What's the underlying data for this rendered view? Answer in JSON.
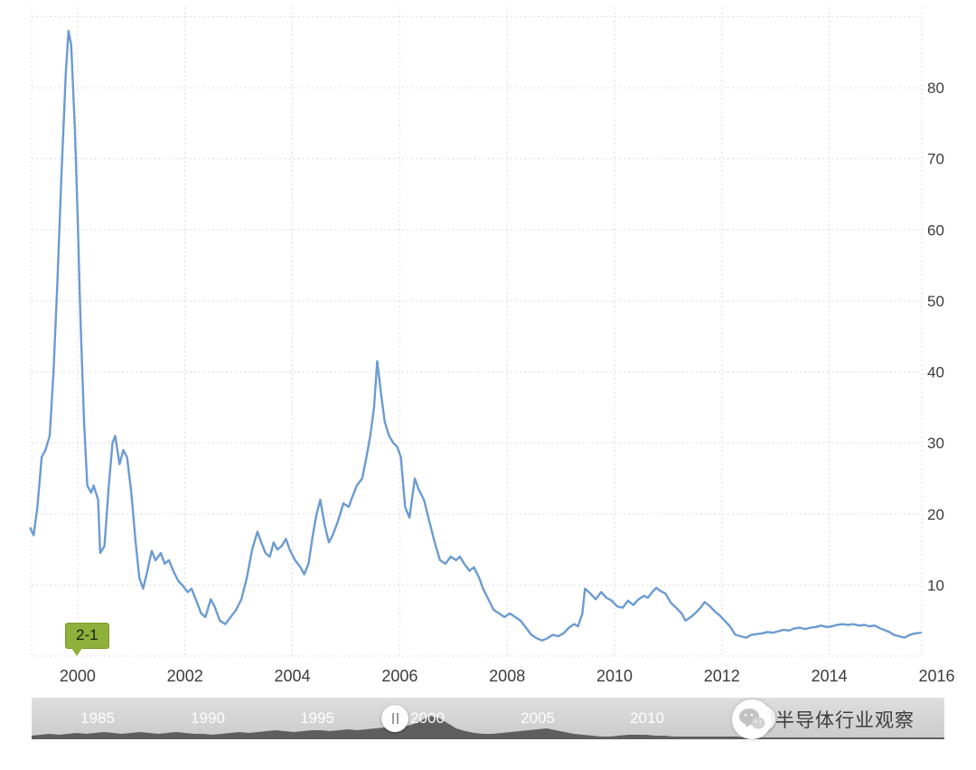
{
  "chart_data": {
    "type": "line",
    "title": "",
    "xlabel": "",
    "ylabel": "",
    "x_range": [
      1999.143,
      2015.723
    ],
    "y_range": [
      0,
      90
    ],
    "x_ticks": [
      "2000",
      "2002",
      "2004",
      "2006",
      "2008",
      "2010",
      "2012",
      "2014",
      "2016"
    ],
    "y_ticks": [
      10,
      20,
      30,
      40,
      50,
      60,
      70,
      80
    ],
    "y_axis_side": "right",
    "grid": "dashed",
    "legend": "none",
    "line_color": "#6b9bd2",
    "series": [
      {
        "name": "value",
        "points": [
          [
            1999.12,
            18
          ],
          [
            1999.18,
            17
          ],
          [
            1999.25,
            21
          ],
          [
            1999.33,
            28
          ],
          [
            1999.4,
            29
          ],
          [
            1999.48,
            31
          ],
          [
            1999.55,
            40
          ],
          [
            1999.62,
            52
          ],
          [
            1999.7,
            68
          ],
          [
            1999.78,
            82
          ],
          [
            1999.83,
            88
          ],
          [
            1999.88,
            86
          ],
          [
            1999.95,
            74
          ],
          [
            2000.0,
            62
          ],
          [
            2000.05,
            48
          ],
          [
            2000.12,
            33
          ],
          [
            2000.18,
            24
          ],
          [
            2000.25,
            23
          ],
          [
            2000.3,
            24
          ],
          [
            2000.38,
            22
          ],
          [
            2000.42,
            14.5
          ],
          [
            2000.5,
            15.5
          ],
          [
            2000.58,
            24
          ],
          [
            2000.65,
            30
          ],
          [
            2000.7,
            31
          ],
          [
            2000.78,
            27
          ],
          [
            2000.85,
            29
          ],
          [
            2000.92,
            28
          ],
          [
            2001.0,
            23
          ],
          [
            2001.08,
            16
          ],
          [
            2001.15,
            11
          ],
          [
            2001.22,
            9.5
          ],
          [
            2001.3,
            12
          ],
          [
            2001.38,
            14.8
          ],
          [
            2001.45,
            13.5
          ],
          [
            2001.55,
            14.5
          ],
          [
            2001.62,
            13
          ],
          [
            2001.7,
            13.5
          ],
          [
            2001.78,
            12
          ],
          [
            2001.88,
            10.5
          ],
          [
            2001.95,
            10
          ],
          [
            2002.05,
            9
          ],
          [
            2002.12,
            9.5
          ],
          [
            2002.2,
            8
          ],
          [
            2002.3,
            6
          ],
          [
            2002.38,
            5.5
          ],
          [
            2002.48,
            8
          ],
          [
            2002.55,
            7
          ],
          [
            2002.65,
            5
          ],
          [
            2002.75,
            4.5
          ],
          [
            2002.85,
            5.5
          ],
          [
            2002.95,
            6.5
          ],
          [
            2003.05,
            8
          ],
          [
            2003.15,
            11
          ],
          [
            2003.25,
            15
          ],
          [
            2003.35,
            17.5
          ],
          [
            2003.42,
            16
          ],
          [
            2003.5,
            14.5
          ],
          [
            2003.58,
            14
          ],
          [
            2003.65,
            16
          ],
          [
            2003.72,
            15
          ],
          [
            2003.8,
            15.5
          ],
          [
            2003.88,
            16.5
          ],
          [
            2003.95,
            15
          ],
          [
            2004.05,
            13.5
          ],
          [
            2004.15,
            12.5
          ],
          [
            2004.22,
            11.5
          ],
          [
            2004.3,
            13
          ],
          [
            2004.38,
            17
          ],
          [
            2004.45,
            20
          ],
          [
            2004.52,
            22
          ],
          [
            2004.6,
            18.5
          ],
          [
            2004.68,
            16
          ],
          [
            2004.75,
            17
          ],
          [
            2004.85,
            19
          ],
          [
            2004.95,
            21.5
          ],
          [
            2005.05,
            21
          ],
          [
            2005.12,
            22.5
          ],
          [
            2005.2,
            24
          ],
          [
            2005.3,
            25
          ],
          [
            2005.38,
            28
          ],
          [
            2005.45,
            31
          ],
          [
            2005.52,
            35
          ],
          [
            2005.58,
            41.5
          ],
          [
            2005.65,
            37
          ],
          [
            2005.72,
            33
          ],
          [
            2005.8,
            31
          ],
          [
            2005.88,
            30
          ],
          [
            2005.95,
            29.5
          ],
          [
            2006.02,
            28
          ],
          [
            2006.1,
            21
          ],
          [
            2006.18,
            19.5
          ],
          [
            2006.28,
            25
          ],
          [
            2006.35,
            23.5
          ],
          [
            2006.45,
            22
          ],
          [
            2006.55,
            19
          ],
          [
            2006.65,
            16
          ],
          [
            2006.75,
            13.5
          ],
          [
            2006.85,
            13
          ],
          [
            2006.95,
            14
          ],
          [
            2007.05,
            13.5
          ],
          [
            2007.12,
            14
          ],
          [
            2007.2,
            13
          ],
          [
            2007.3,
            12
          ],
          [
            2007.38,
            12.5
          ],
          [
            2007.48,
            11
          ],
          [
            2007.55,
            9.5
          ],
          [
            2007.65,
            8
          ],
          [
            2007.75,
            6.5
          ],
          [
            2007.85,
            6
          ],
          [
            2007.95,
            5.5
          ],
          [
            2008.05,
            6
          ],
          [
            2008.15,
            5.5
          ],
          [
            2008.25,
            5
          ],
          [
            2008.35,
            4
          ],
          [
            2008.45,
            3
          ],
          [
            2008.55,
            2.5
          ],
          [
            2008.65,
            2.2
          ],
          [
            2008.75,
            2.5
          ],
          [
            2008.85,
            3
          ],
          [
            2008.95,
            2.8
          ],
          [
            2009.05,
            3.2
          ],
          [
            2009.15,
            4
          ],
          [
            2009.25,
            4.5
          ],
          [
            2009.32,
            4.2
          ],
          [
            2009.4,
            6
          ],
          [
            2009.45,
            9.5
          ],
          [
            2009.55,
            8.8
          ],
          [
            2009.65,
            8
          ],
          [
            2009.75,
            9
          ],
          [
            2009.85,
            8.2
          ],
          [
            2009.95,
            7.8
          ],
          [
            2010.05,
            7
          ],
          [
            2010.15,
            6.8
          ],
          [
            2010.25,
            7.8
          ],
          [
            2010.35,
            7.2
          ],
          [
            2010.45,
            8
          ],
          [
            2010.55,
            8.5
          ],
          [
            2010.62,
            8.2
          ],
          [
            2010.7,
            9
          ],
          [
            2010.78,
            9.6
          ],
          [
            2010.85,
            9.2
          ],
          [
            2010.95,
            8.8
          ],
          [
            2011.05,
            7.5
          ],
          [
            2011.15,
            6.8
          ],
          [
            2011.25,
            6
          ],
          [
            2011.32,
            5
          ],
          [
            2011.42,
            5.5
          ],
          [
            2011.5,
            6
          ],
          [
            2011.6,
            6.8
          ],
          [
            2011.68,
            7.6
          ],
          [
            2011.78,
            7
          ],
          [
            2011.88,
            6.2
          ],
          [
            2011.95,
            5.8
          ],
          [
            2012.05,
            5
          ],
          [
            2012.15,
            4.2
          ],
          [
            2012.25,
            3
          ],
          [
            2012.35,
            2.8
          ],
          [
            2012.45,
            2.6
          ],
          [
            2012.55,
            3
          ],
          [
            2012.65,
            3.1
          ],
          [
            2012.75,
            3.2
          ],
          [
            2012.85,
            3.4
          ],
          [
            2012.95,
            3.3
          ],
          [
            2013.05,
            3.5
          ],
          [
            2013.15,
            3.7
          ],
          [
            2013.25,
            3.6
          ],
          [
            2013.35,
            3.9
          ],
          [
            2013.45,
            4
          ],
          [
            2013.55,
            3.8
          ],
          [
            2013.65,
            4
          ],
          [
            2013.75,
            4.1
          ],
          [
            2013.85,
            4.3
          ],
          [
            2013.95,
            4.1
          ],
          [
            2014.05,
            4.2
          ],
          [
            2014.15,
            4.4
          ],
          [
            2014.25,
            4.5
          ],
          [
            2014.35,
            4.4
          ],
          [
            2014.45,
            4.5
          ],
          [
            2014.55,
            4.3
          ],
          [
            2014.65,
            4.4
          ],
          [
            2014.75,
            4.2
          ],
          [
            2014.85,
            4.3
          ],
          [
            2014.95,
            3.9
          ],
          [
            2015.05,
            3.6
          ],
          [
            2015.12,
            3.4
          ],
          [
            2015.2,
            3
          ],
          [
            2015.3,
            2.8
          ],
          [
            2015.4,
            2.6
          ],
          [
            2015.5,
            3
          ],
          [
            2015.6,
            3.2
          ],
          [
            2015.7,
            3.3
          ]
        ]
      }
    ]
  },
  "marker_flag": {
    "label": "2-1",
    "color": "#8fb03a"
  },
  "timeline": {
    "year_labels": [
      "1985",
      "1990",
      "1995",
      "2000",
      "2005",
      "2010"
    ],
    "handle_glyph": "||"
  },
  "watermark": {
    "text": "半导体行业观察",
    "icon": "wechat-icon"
  }
}
